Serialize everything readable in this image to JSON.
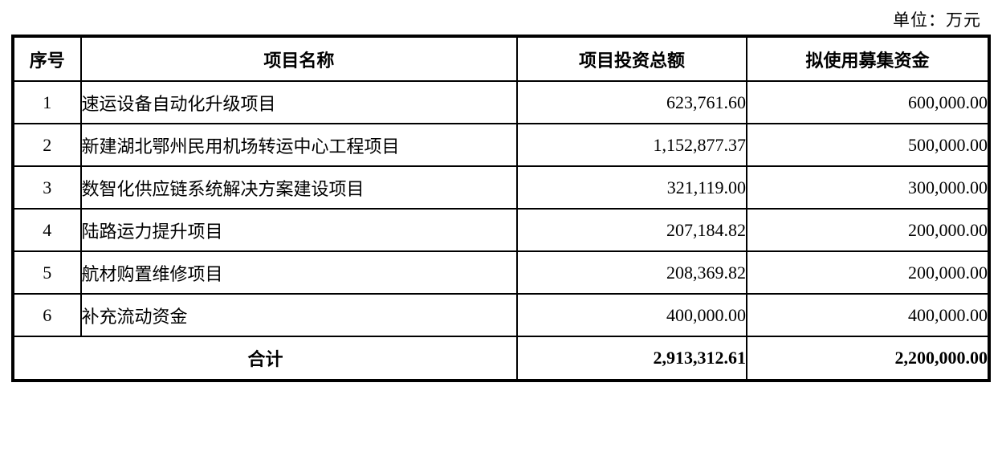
{
  "unit_label": "单位：万元",
  "table": {
    "headers": {
      "no": "序号",
      "name": "项目名称",
      "investment": "项目投资总额",
      "funds": "拟使用募集资金"
    },
    "rows": [
      {
        "no": "1",
        "name": "速运设备自动化升级项目",
        "investment": "623,761.60",
        "funds": "600,000.00"
      },
      {
        "no": "2",
        "name": "新建湖北鄂州民用机场转运中心工程项目",
        "investment": "1,152,877.37",
        "funds": "500,000.00"
      },
      {
        "no": "3",
        "name": "数智化供应链系统解决方案建设项目",
        "investment": "321,119.00",
        "funds": "300,000.00"
      },
      {
        "no": "4",
        "name": "陆路运力提升项目",
        "investment": "207,184.82",
        "funds": "200,000.00"
      },
      {
        "no": "5",
        "name": "航材购置维修项目",
        "investment": "208,369.82",
        "funds": "200,000.00"
      },
      {
        "no": "6",
        "name": "补充流动资金",
        "investment": "400,000.00",
        "funds": "400,000.00"
      }
    ],
    "total": {
      "label": "合计",
      "investment": "2,913,312.61",
      "funds": "2,200,000.00"
    }
  }
}
